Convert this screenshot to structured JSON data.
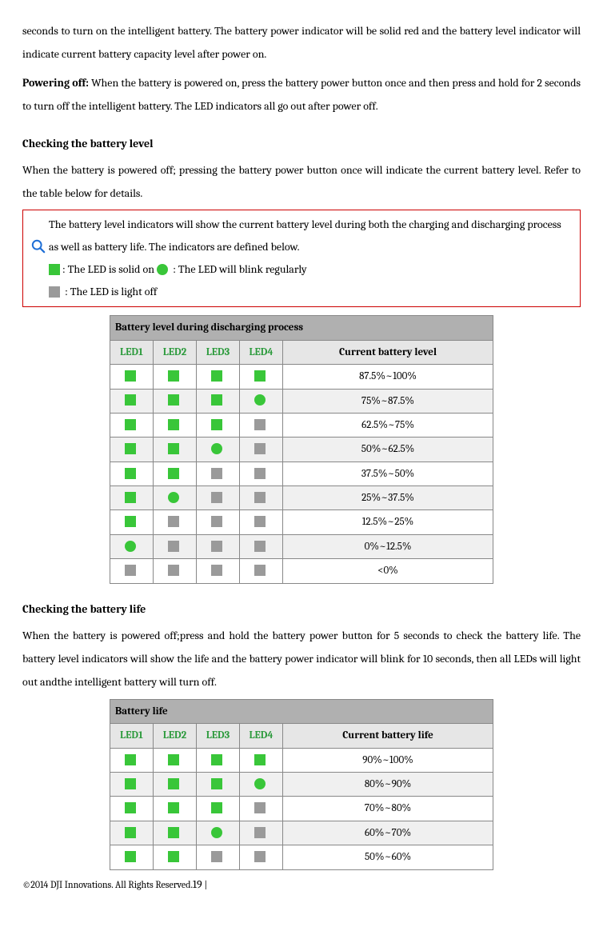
{
  "colors": {
    "solid_green": "#39c639",
    "blink_green": "#39c639",
    "off_gray": "#9a9a9a",
    "note_border": "#c00000",
    "mag_blue": "#1f6fd6",
    "table_title_bg": "#b0b0b0",
    "table_head_bg": "#e6e6e6",
    "led_header_color": "#2e9b3e"
  },
  "top_para": "seconds to turn on the intelligent battery. The battery power indicator will be solid red and the battery level indicator will indicate current battery capacity level after power on.",
  "power_off_label": "Powering off:",
  "power_off_text": " When the battery is powered on, press the battery power button once and then press and hold for 2 seconds to turn off the intelligent battery. The LED indicators all go out after power off.",
  "check_level_head": "Checking the battery level",
  "check_level_text": "When the battery is powered off; pressing the battery power button once will indicate the current battery level. Refer to the table below for details.",
  "note_text1": "The battery level indicators will show the current battery level during both the charging and discharging process as well as battery life. The indicators are defined below.",
  "note_solid": ": The LED is solid on ",
  "note_blink": " : The LED will blink regularly",
  "note_off": " : The LED is light off",
  "table1": {
    "title": "Battery level during discharging process",
    "led_headers": [
      "LED1",
      "LED2",
      "LED3",
      "LED4"
    ],
    "current_header": "Current battery level",
    "rows": [
      {
        "leds": [
          "solid",
          "solid",
          "solid",
          "solid"
        ],
        "label": "87.5%~100%"
      },
      {
        "leds": [
          "solid",
          "solid",
          "solid",
          "blink"
        ],
        "label": "75%~87.5%"
      },
      {
        "leds": [
          "solid",
          "solid",
          "solid",
          "off"
        ],
        "label": "62.5%~75%"
      },
      {
        "leds": [
          "solid",
          "solid",
          "blink",
          "off"
        ],
        "label": "50%~62.5%"
      },
      {
        "leds": [
          "solid",
          "solid",
          "off",
          "off"
        ],
        "label": "37.5%~50%"
      },
      {
        "leds": [
          "solid",
          "blink",
          "off",
          "off"
        ],
        "label": "25%~37.5%"
      },
      {
        "leds": [
          "solid",
          "off",
          "off",
          "off"
        ],
        "label": "12.5%~25%"
      },
      {
        "leds": [
          "blink",
          "off",
          "off",
          "off"
        ],
        "label": "0%~12.5%"
      },
      {
        "leds": [
          "off",
          "off",
          "off",
          "off"
        ],
        "label": "<0%"
      }
    ]
  },
  "check_life_head": "Checking the battery life",
  "check_life_text": "When the battery is powered off;press and hold the battery power button for 5 seconds to check the battery life. The battery level indicators will show the life and the battery power indicator will blink for 10 seconds, then all LEDs will light out andthe intelligent battery will turn off.",
  "table2": {
    "title": "Battery life",
    "led_headers": [
      "LED1",
      "LED2",
      "LED3",
      "LED4"
    ],
    "current_header": "Current battery life",
    "rows": [
      {
        "leds": [
          "solid",
          "solid",
          "solid",
          "solid"
        ],
        "label": "90%~100%"
      },
      {
        "leds": [
          "solid",
          "solid",
          "solid",
          "blink"
        ],
        "label": "80%~90%"
      },
      {
        "leds": [
          "solid",
          "solid",
          "solid",
          "off"
        ],
        "label": "70%~80%"
      },
      {
        "leds": [
          "solid",
          "solid",
          "blink",
          "off"
        ],
        "label": "60%~70%"
      },
      {
        "leds": [
          "solid",
          "solid",
          "off",
          "off"
        ],
        "label": "50%~60%"
      }
    ]
  },
  "footer_copy": "©2014 DJI Innovations. All Rights Reserved.",
  "footer_page": "19",
  "footer_sep": " | "
}
